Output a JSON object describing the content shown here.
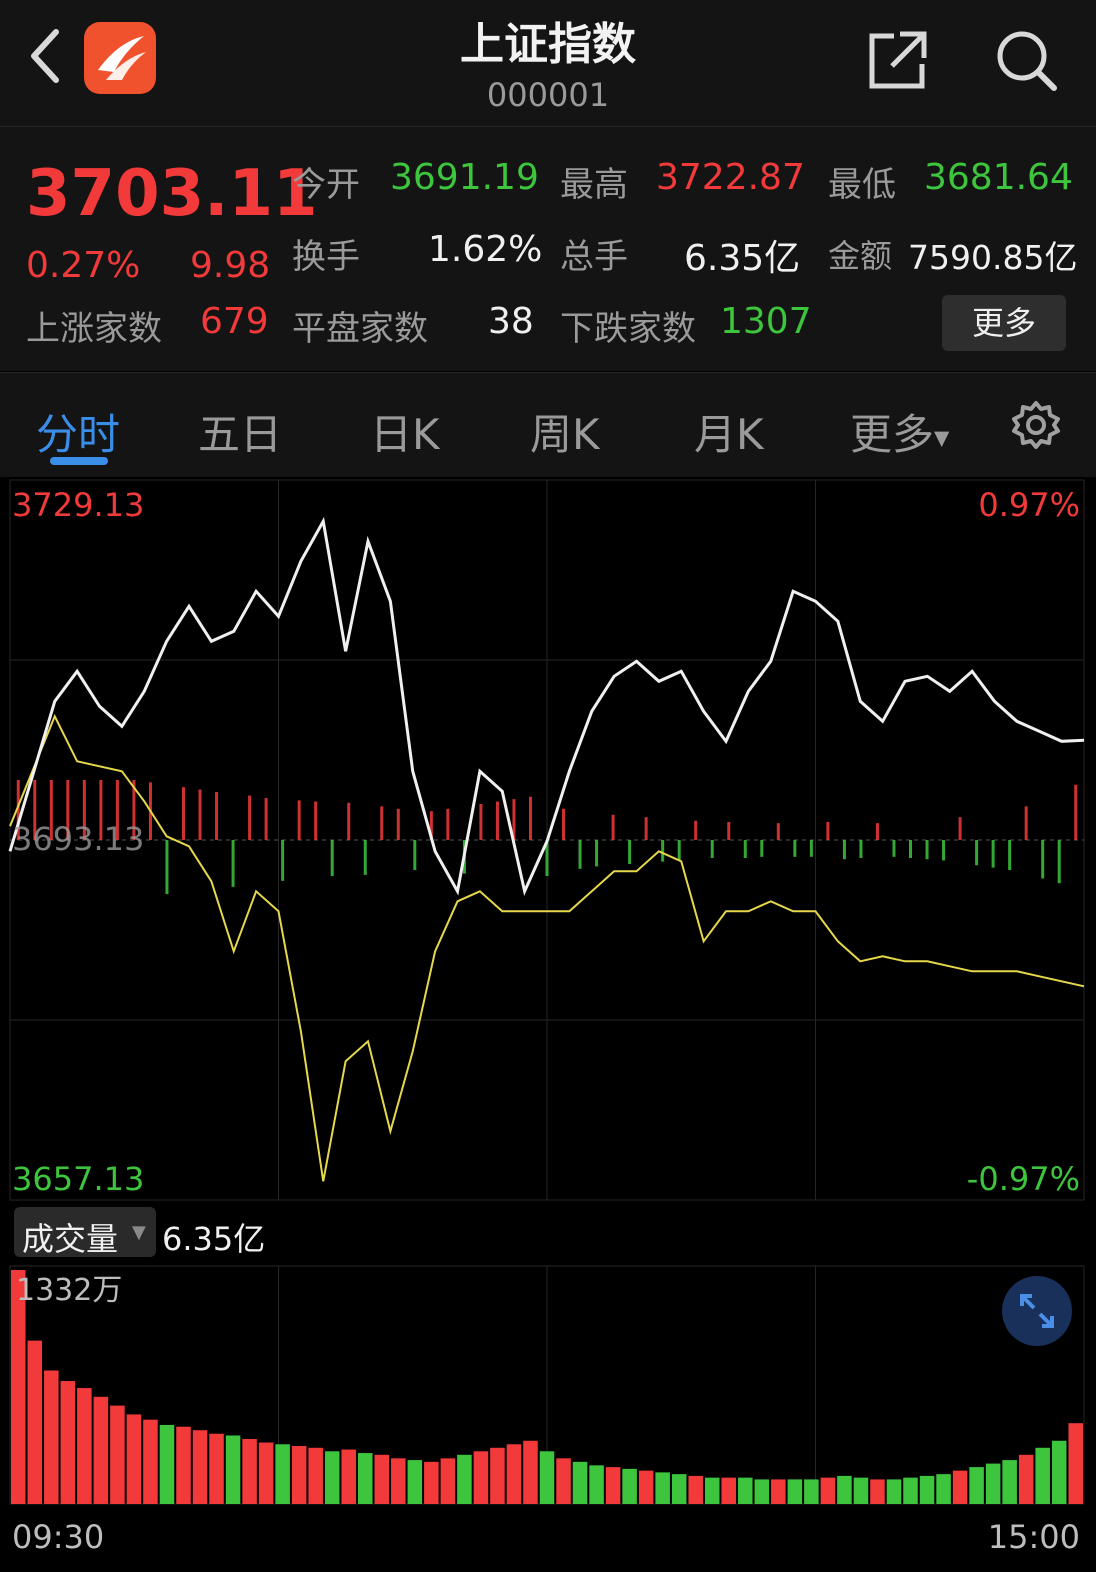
{
  "header": {
    "title": "上证指数",
    "code": "000001"
  },
  "quote": {
    "price": "3703.11",
    "change_pct": "0.27%",
    "change": "9.98",
    "open_label": "今开",
    "open": "3691.19",
    "high_label": "最高",
    "high": "3722.87",
    "low_label": "最低",
    "low": "3681.64",
    "turnover_label": "换手",
    "turnover": "1.62%",
    "volume_label": "总手",
    "volume": "6.35亿",
    "amount_label": "金额",
    "amount": "7590.85亿",
    "up_label": "上涨家数",
    "up": "679",
    "flat_label": "平盘家数",
    "flat": "38",
    "down_label": "下跌家数",
    "down": "1307",
    "more_label": "更多"
  },
  "tabs": [
    "分时",
    "五日",
    "日K",
    "周K",
    "月K",
    "更多"
  ],
  "colors": {
    "up": "#f23a3a",
    "down": "#3dc63d",
    "price_line": "#f0f0f0",
    "avg_line": "#e6d84a",
    "accent": "#3a8ee8"
  },
  "volume_panel": {
    "label": "成交量",
    "total": "6.35亿",
    "max_label": "1332万"
  },
  "chart_data": {
    "type": "line",
    "y_top_label": "3729.13",
    "y_mid_label": "3693.13",
    "y_bottom_label": "3657.13",
    "pct_top_label": "0.97%",
    "pct_bottom_label": "-0.97%",
    "x_start_label": "09:30",
    "x_end_label": "15:00",
    "ylim": [
      3657.13,
      3729.13
    ],
    "prev_close": 3693.13,
    "x_minutes": [
      0,
      5,
      10,
      15,
      20,
      25,
      30,
      35,
      40,
      45,
      50,
      55,
      60,
      65,
      70,
      75,
      80,
      85,
      90,
      95,
      100,
      105,
      110,
      115,
      120,
      125,
      130,
      135,
      140,
      145,
      150,
      155,
      160,
      165,
      170,
      175,
      180,
      185,
      190,
      195,
      200,
      205,
      210,
      215,
      220,
      225,
      230,
      235,
      240
    ],
    "series": [
      {
        "values": [
          3692.0,
          3699.5,
          3707.0,
          3710.0,
          3706.5,
          3704.5,
          3708.0,
          3713.0,
          3716.5,
          3713.0,
          3714.0,
          3718.0,
          3715.5,
          3721.0,
          3725.0,
          3712.0,
          3723.0,
          3717.0,
          3700.0,
          3692.0,
          3688.0,
          3700.0,
          3698.0,
          3688.0,
          3693.0,
          3700.0,
          3706.0,
          3709.5,
          3711.0,
          3709.0,
          3710.0,
          3706.0,
          3703.0,
          3708.0,
          3711.0,
          3718.0,
          3717.0,
          3715.0,
          3707.0,
          3705.0,
          3709.0,
          3709.5,
          3708.0,
          3710.0,
          3707.0,
          3705.0,
          3704.0,
          3703.0,
          3703.11
        ]
      },
      {
        "values": [
          3694.5,
          3700.0,
          3705.5,
          3701.0,
          3700.5,
          3700.0,
          3697.0,
          3693.5,
          3692.5,
          3689.0,
          3682.0,
          3688.0,
          3686.0,
          3674.0,
          3659.0,
          3671.0,
          3673.0,
          3664.0,
          3672.0,
          3682.0,
          3687.0,
          3688.0,
          3686.0,
          3686.0,
          3686.0,
          3686.0,
          3688.0,
          3690.0,
          3690.0,
          3692.0,
          3691.0,
          3683.0,
          3686.0,
          3686.0,
          3687.0,
          3686.0,
          3686.0,
          3683.0,
          3681.0,
          3681.5,
          3681.0,
          3681.0,
          3680.5,
          3680.0,
          3680.0,
          3680.0,
          3679.5,
          3679.0,
          3678.5
        ]
      }
    ],
    "volume": {
      "unit": "万",
      "max": 1332,
      "values": [
        1332,
        930,
        760,
        700,
        660,
        610,
        560,
        510,
        480,
        450,
        440,
        420,
        400,
        390,
        370,
        350,
        340,
        330,
        320,
        300,
        310,
        290,
        280,
        260,
        250,
        240,
        260,
        280,
        300,
        320,
        340,
        360,
        300,
        260,
        240,
        220,
        210,
        200,
        190,
        180,
        170,
        160,
        150,
        150,
        150,
        140,
        140,
        140,
        140,
        150,
        160,
        150,
        140,
        140,
        150,
        160,
        170,
        190,
        210,
        230,
        250,
        280,
        320,
        360,
        460
      ],
      "direction": [
        "u",
        "u",
        "u",
        "u",
        "u",
        "u",
        "u",
        "u",
        "u",
        "d",
        "u",
        "u",
        "u",
        "d",
        "u",
        "u",
        "d",
        "u",
        "u",
        "d",
        "u",
        "d",
        "u",
        "u",
        "d",
        "u",
        "u",
        "d",
        "u",
        "u",
        "u",
        "u",
        "d",
        "u",
        "d",
        "d",
        "u",
        "d",
        "u",
        "d",
        "d",
        "u",
        "d",
        "u",
        "d",
        "d",
        "u",
        "d",
        "d",
        "u",
        "d",
        "d",
        "u",
        "d",
        "d",
        "d",
        "d",
        "u",
        "d",
        "d",
        "d",
        "u",
        "d",
        "d",
        "u"
      ]
    }
  }
}
